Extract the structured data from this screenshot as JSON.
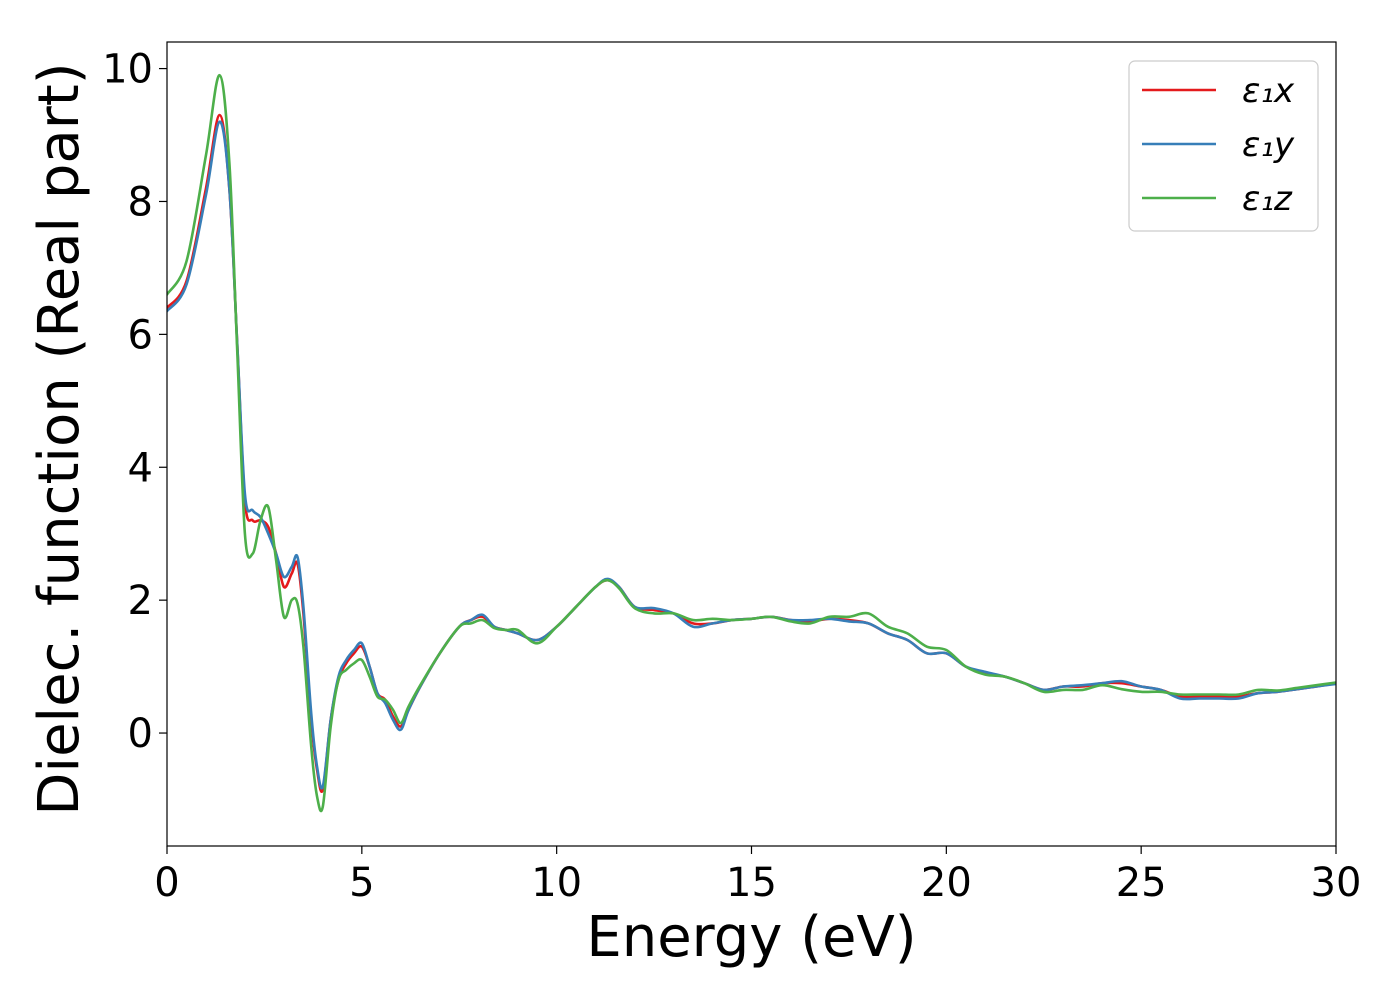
{
  "chart_data": {
    "type": "line",
    "title": "",
    "xlabel": "Energy (eV)",
    "ylabel": "Dielec. function (Real part)",
    "xlim": [
      0,
      30
    ],
    "ylim": [
      -1.7,
      10.4
    ],
    "xticks": [
      "0",
      "5",
      "10",
      "15",
      "20",
      "25",
      "30"
    ],
    "yticks": [
      "0",
      "2",
      "4",
      "6",
      "8",
      "10"
    ],
    "grid": false,
    "legend_position": "top-right",
    "x": [
      0,
      0.5,
      1.0,
      1.35,
      1.6,
      1.8,
      2.0,
      2.2,
      2.4,
      2.6,
      2.8,
      3.0,
      3.2,
      3.35,
      3.5,
      3.7,
      3.85,
      4.0,
      4.2,
      4.4,
      4.6,
      4.8,
      5.0,
      5.2,
      5.4,
      5.6,
      5.8,
      6.0,
      6.2,
      6.5,
      7.0,
      7.5,
      7.8,
      8.1,
      8.4,
      8.7,
      9.0,
      9.5,
      10.0,
      10.5,
      11.0,
      11.3,
      11.6,
      12.0,
      12.5,
      13.0,
      13.5,
      14.0,
      14.5,
      15.0,
      15.5,
      16.0,
      16.5,
      17.0,
      17.5,
      18.0,
      18.5,
      19.0,
      19.5,
      20.0,
      20.5,
      21.0,
      21.5,
      22.0,
      22.5,
      23.0,
      23.5,
      24.0,
      24.5,
      25.0,
      25.5,
      26.0,
      26.5,
      27.0,
      27.5,
      28.0,
      28.5,
      29.0,
      29.5,
      30.0
    ],
    "series": [
      {
        "name": "ε₁x",
        "color": "#e41a1c",
        "values": [
          6.4,
          6.8,
          8.2,
          9.3,
          8.2,
          5.9,
          3.5,
          3.2,
          3.2,
          3.1,
          2.7,
          2.2,
          2.4,
          2.55,
          1.8,
          0.2,
          -0.55,
          -0.85,
          0.2,
          0.8,
          1.05,
          1.2,
          1.3,
          1.0,
          0.6,
          0.5,
          0.25,
          0.1,
          0.35,
          0.7,
          1.2,
          1.6,
          1.7,
          1.75,
          1.6,
          1.55,
          1.5,
          1.4,
          1.6,
          1.9,
          2.2,
          2.3,
          2.2,
          1.9,
          1.85,
          1.8,
          1.65,
          1.65,
          1.7,
          1.72,
          1.75,
          1.7,
          1.68,
          1.72,
          1.7,
          1.65,
          1.5,
          1.4,
          1.2,
          1.2,
          1.0,
          0.9,
          0.85,
          0.75,
          0.65,
          0.7,
          0.7,
          0.75,
          0.75,
          0.7,
          0.65,
          0.55,
          0.55,
          0.55,
          0.55,
          0.6,
          0.62,
          0.66,
          0.7,
          0.75
        ]
      },
      {
        "name": "ε₁y",
        "color": "#377eb8",
        "values": [
          6.35,
          6.75,
          8.1,
          9.2,
          8.2,
          5.9,
          3.6,
          3.35,
          3.25,
          3.0,
          2.7,
          2.35,
          2.5,
          2.65,
          1.9,
          0.3,
          -0.5,
          -0.8,
          0.2,
          0.85,
          1.1,
          1.25,
          1.35,
          1.0,
          0.6,
          0.45,
          0.2,
          0.05,
          0.35,
          0.7,
          1.2,
          1.6,
          1.7,
          1.78,
          1.6,
          1.55,
          1.5,
          1.4,
          1.6,
          1.9,
          2.2,
          2.32,
          2.2,
          1.9,
          1.88,
          1.8,
          1.6,
          1.65,
          1.7,
          1.72,
          1.75,
          1.7,
          1.7,
          1.72,
          1.68,
          1.65,
          1.5,
          1.4,
          1.2,
          1.2,
          1.0,
          0.92,
          0.85,
          0.75,
          0.65,
          0.7,
          0.72,
          0.75,
          0.78,
          0.7,
          0.65,
          0.52,
          0.52,
          0.52,
          0.52,
          0.6,
          0.62,
          0.66,
          0.7,
          0.74
        ]
      },
      {
        "name": "ε₁z",
        "color": "#4daf4a",
        "values": [
          6.6,
          7.1,
          8.7,
          9.9,
          8.6,
          5.8,
          3.0,
          2.7,
          3.2,
          3.4,
          2.6,
          1.75,
          2.0,
          1.95,
          1.3,
          -0.2,
          -0.95,
          -1.1,
          0.1,
          0.8,
          0.95,
          1.05,
          1.1,
          0.85,
          0.55,
          0.5,
          0.35,
          0.15,
          0.4,
          0.72,
          1.2,
          1.6,
          1.65,
          1.7,
          1.58,
          1.55,
          1.55,
          1.35,
          1.6,
          1.9,
          2.2,
          2.3,
          2.18,
          1.88,
          1.8,
          1.8,
          1.7,
          1.72,
          1.7,
          1.72,
          1.75,
          1.68,
          1.65,
          1.75,
          1.75,
          1.8,
          1.6,
          1.5,
          1.3,
          1.25,
          1.0,
          0.88,
          0.85,
          0.75,
          0.62,
          0.65,
          0.65,
          0.72,
          0.66,
          0.62,
          0.62,
          0.58,
          0.58,
          0.58,
          0.58,
          0.65,
          0.64,
          0.68,
          0.72,
          0.76
        ]
      }
    ]
  }
}
